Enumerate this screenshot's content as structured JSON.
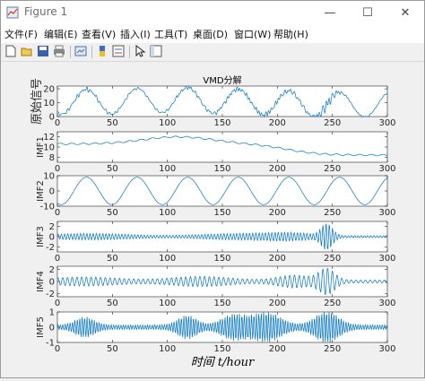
{
  "window": {
    "title": "Figure 1"
  },
  "menu": [
    "文件(F)",
    "编辑(E)",
    "查看(V)",
    "插入(I)",
    "工具(T)",
    "桌面(D)",
    "窗口(W)",
    "帮助(H)"
  ],
  "toolbar_icons": [
    "new-figure-icon",
    "open-icon",
    "save-icon",
    "print-icon",
    "link-plot-icon",
    "insert-colorbar-icon",
    "insert-legend-icon",
    "pointer-icon",
    "plot-tools-icon"
  ],
  "colors": {
    "line": "#0072bd",
    "axes_bg": "#ffffff",
    "figure_bg": "#f0f0f0"
  },
  "chart_data": [
    {
      "type": "line",
      "title": "VMD分解",
      "ylabel": "原始信号",
      "xlabel": "",
      "xlim": [
        0,
        300
      ],
      "ylim": [
        0,
        22
      ],
      "yticks": [
        0,
        10,
        20
      ],
      "xticks": [
        0,
        50,
        100,
        150,
        200,
        250,
        300
      ],
      "grid": false
    },
    {
      "type": "line",
      "title": "",
      "ylabel": "IMF1",
      "xlabel": "",
      "xlim": [
        0,
        300
      ],
      "ylim": [
        7,
        13
      ],
      "yticks": [
        8,
        10,
        12
      ],
      "xticks": [
        0,
        50,
        100,
        150,
        200,
        250,
        300
      ],
      "grid": false
    },
    {
      "type": "line",
      "title": "",
      "ylabel": "IMF2",
      "xlabel": "",
      "xlim": [
        0,
        300
      ],
      "ylim": [
        -10,
        10
      ],
      "yticks": [
        -10,
        0,
        10
      ],
      "xticks": [
        0,
        50,
        100,
        150,
        200,
        250,
        300
      ],
      "grid": false
    },
    {
      "type": "line",
      "title": "",
      "ylabel": "IMF3",
      "xlabel": "",
      "xlim": [
        0,
        300
      ],
      "ylim": [
        -3,
        3
      ],
      "yticks": [
        -2,
        0,
        2
      ],
      "xticks": [
        0,
        50,
        100,
        150,
        200,
        250,
        300
      ],
      "grid": false
    },
    {
      "type": "line",
      "title": "",
      "ylabel": "IMF4",
      "xlabel": "",
      "xlim": [
        0,
        300
      ],
      "ylim": [
        -2.5,
        2.5
      ],
      "yticks": [
        -2,
        0,
        2
      ],
      "xticks": [
        0,
        50,
        100,
        150,
        200,
        250,
        300
      ],
      "grid": false
    },
    {
      "type": "line",
      "title": "",
      "ylabel": "IMF5",
      "xlabel": "时间 t/hour",
      "xlim": [
        0,
        300
      ],
      "ylim": [
        -1,
        1
      ],
      "yticks": [
        -1,
        0,
        1
      ],
      "xticks": [
        0,
        50,
        100,
        150,
        200,
        250,
        300
      ],
      "grid": false
    }
  ]
}
